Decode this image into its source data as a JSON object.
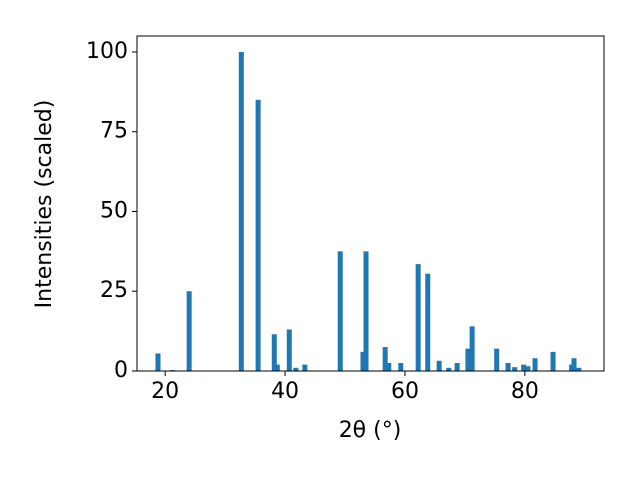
{
  "chart_data": {
    "type": "bar",
    "x_label": "2θ (°)",
    "y_label": "Intensities (scaled)",
    "x": [
      18.8,
      21.2,
      24.0,
      32.7,
      35.5,
      38.2,
      38.7,
      40.7,
      41.8,
      43.3,
      49.2,
      53.0,
      53.5,
      56.7,
      57.3,
      59.3,
      62.2,
      63.8,
      65.7,
      67.3,
      68.7,
      70.5,
      71.2,
      75.3,
      77.2,
      78.3,
      79.8,
      80.5,
      81.7,
      84.7,
      87.8,
      88.2,
      89.0
    ],
    "values": [
      5.5,
      0.3,
      25,
      100,
      85,
      11.5,
      2,
      13,
      1,
      2,
      37.5,
      6,
      37.5,
      7.5,
      2.5,
      2.5,
      33.5,
      30.5,
      3.2,
      1,
      2.5,
      7,
      14,
      7,
      2.5,
      1.2,
      2,
      1.5,
      4,
      6,
      2,
      4,
      1
    ],
    "color": "#1f77b4",
    "xlim": [
      15.3,
      93.2
    ],
    "ylim": [
      0,
      105
    ],
    "xticks": [
      20,
      40,
      60,
      80
    ],
    "yticks": [
      0,
      25,
      50,
      75,
      100
    ],
    "grid": false
  }
}
